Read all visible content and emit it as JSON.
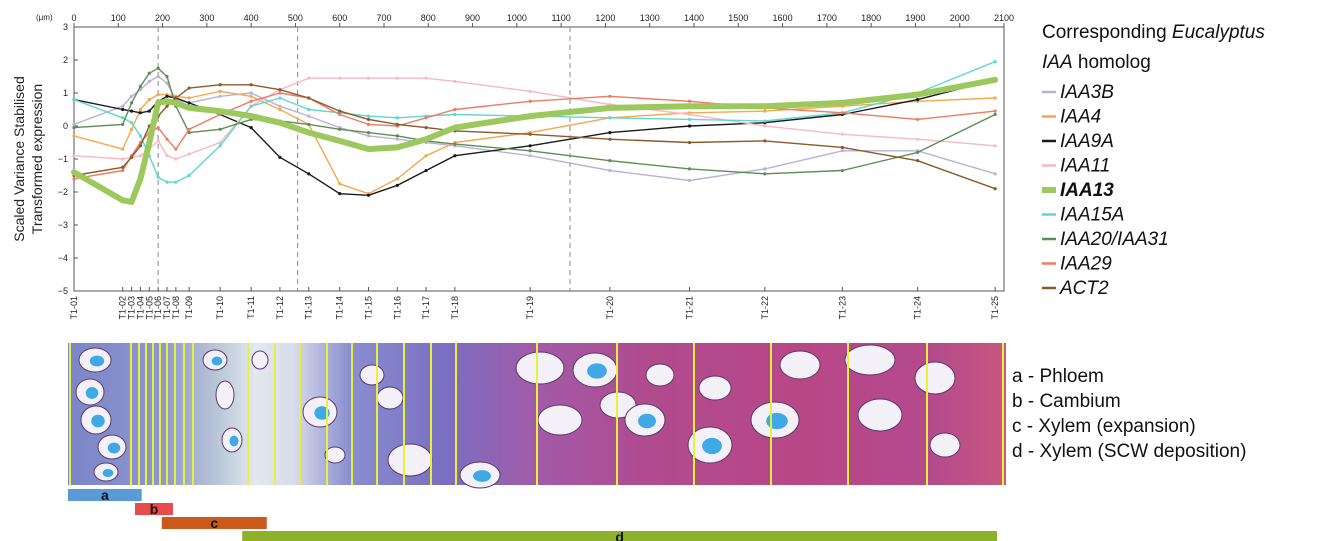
{
  "chart_data": {
    "type": "line",
    "top_axis_label": "(μm)",
    "top_axis_ticks": [
      "0",
      "100",
      "200",
      "300",
      "400",
      "500",
      "600",
      "700",
      "800",
      "900",
      "1000",
      "1100",
      "1200",
      "1300",
      "1400",
      "1500",
      "1600",
      "1700",
      "1800",
      "1900",
      "2000",
      "2100"
    ],
    "top_axis_range": [
      0,
      2100
    ],
    "ylabel_line1": "Scaled Variance Stabilised",
    "ylabel_line2": "Transformed expression",
    "ylim": [
      -5,
      3
    ],
    "yticks": [
      "3",
      "2",
      "1",
      "0",
      "−1",
      "−2",
      "−3",
      "−4",
      "−5"
    ],
    "grid": false,
    "legend_title_prefix": "Corresponding ",
    "legend_title_genus": "Eucalyptus",
    "legend_title_gene": "IAA",
    "legend_title_suffix": " homolog",
    "legend_placement": "right",
    "x": [
      {
        "label": "T1-01",
        "um": 0
      },
      {
        "label": "T1-02",
        "um": 110
      },
      {
        "label": "T1-03",
        "um": 130
      },
      {
        "label": "T1-04",
        "um": 150
      },
      {
        "label": "T1-05",
        "um": 170
      },
      {
        "label": "T1-06",
        "um": 190
      },
      {
        "label": "T1-07",
        "um": 210
      },
      {
        "label": "T1-08",
        "um": 230
      },
      {
        "label": "T1-09",
        "um": 260
      },
      {
        "label": "T1-10",
        "um": 330
      },
      {
        "label": "T1-11",
        "um": 400
      },
      {
        "label": "T1-12",
        "um": 465
      },
      {
        "label": "T1-13",
        "um": 530
      },
      {
        "label": "T1-14",
        "um": 600
      },
      {
        "label": "T1-15",
        "um": 665
      },
      {
        "label": "T1-16",
        "um": 730
      },
      {
        "label": "T1-17",
        "um": 795
      },
      {
        "label": "T1-18",
        "um": 860
      },
      {
        "label": "T1-19",
        "um": 1030
      },
      {
        "label": "T1-20",
        "um": 1210
      },
      {
        "label": "T1-21",
        "um": 1390
      },
      {
        "label": "T1-22",
        "um": 1560
      },
      {
        "label": "T1-23",
        "um": 1735
      },
      {
        "label": "T1-24",
        "um": 1905
      },
      {
        "label": "T1-25",
        "um": 2080
      }
    ],
    "dividers_um": [
      190,
      505,
      1120
    ],
    "series": [
      {
        "name": "IAA3B",
        "color": "#b8b2d8",
        "bold": false,
        "values": [
          0.05,
          0.6,
          0.9,
          1.1,
          1.35,
          1.5,
          1.3,
          0.8,
          0.7,
          0.9,
          1.0,
          0.6,
          0.3,
          -0.05,
          -0.3,
          -0.4,
          -0.5,
          -0.6,
          -0.9,
          -1.35,
          -1.65,
          -1.3,
          -0.75,
          -0.75,
          -1.45
        ]
      },
      {
        "name": "IAA4",
        "color": "#f2a84e",
        "bold": false,
        "values": [
          -0.3,
          -0.7,
          -0.1,
          0.5,
          0.8,
          0.95,
          0.95,
          0.9,
          0.85,
          1.05,
          0.9,
          0.5,
          0.05,
          -1.75,
          -2.05,
          -1.6,
          -0.9,
          -0.5,
          -0.2,
          0.25,
          0.4,
          0.45,
          0.6,
          0.75,
          0.85
        ]
      },
      {
        "name": "IAA9A",
        "color": "#1a1a1a",
        "bold": false,
        "values": [
          0.8,
          0.5,
          0.45,
          0.4,
          0.45,
          0.75,
          0.9,
          0.85,
          0.7,
          0.35,
          -0.05,
          -0.95,
          -1.45,
          -2.05,
          -2.1,
          -1.8,
          -1.35,
          -0.9,
          -0.6,
          -0.2,
          0.0,
          0.1,
          0.35,
          0.8,
          1.4
        ]
      },
      {
        "name": "IAA11",
        "color": "#f6b9c7",
        "bold": false,
        "values": [
          -0.9,
          -1.0,
          -0.95,
          -0.9,
          -0.7,
          -0.45,
          -0.9,
          -1.0,
          -0.85,
          -0.5,
          0.6,
          1.1,
          1.45,
          1.45,
          1.45,
          1.45,
          1.45,
          1.35,
          1.05,
          0.65,
          0.35,
          0.0,
          -0.25,
          -0.4,
          -0.6
        ]
      },
      {
        "name": "IAA13",
        "color": "#9dc85e",
        "bold": true,
        "values": [
          -1.4,
          -2.25,
          -2.3,
          -1.6,
          -0.5,
          0.7,
          0.75,
          0.7,
          0.55,
          0.45,
          0.3,
          0.1,
          -0.2,
          -0.45,
          -0.7,
          -0.65,
          -0.4,
          -0.05,
          0.3,
          0.55,
          0.6,
          0.6,
          0.7,
          0.95,
          1.4
        ]
      },
      {
        "name": "IAA15A",
        "color": "#5fd6d0",
        "bold": false,
        "values": [
          0.8,
          0.25,
          0.1,
          -0.3,
          -0.9,
          -1.55,
          -1.7,
          -1.7,
          -1.5,
          -0.6,
          0.6,
          0.85,
          0.5,
          0.4,
          0.3,
          0.25,
          0.3,
          0.35,
          0.3,
          0.25,
          0.2,
          0.15,
          0.4,
          1.0,
          1.95
        ]
      },
      {
        "name": "IAA20/IAA31",
        "color": "#5c8e52",
        "bold": false,
        "values": [
          -0.05,
          0.05,
          0.7,
          1.2,
          1.6,
          1.75,
          1.5,
          0.6,
          -0.2,
          -0.1,
          0.2,
          0.15,
          0.05,
          -0.1,
          -0.2,
          -0.3,
          -0.45,
          -0.55,
          -0.75,
          -1.05,
          -1.3,
          -1.45,
          -1.35,
          -0.8,
          0.35
        ]
      },
      {
        "name": "IAA29",
        "color": "#ee7a64",
        "bold": false,
        "values": [
          -1.6,
          -1.35,
          -0.9,
          -0.5,
          -0.2,
          -0.05,
          -0.4,
          -0.7,
          -0.1,
          0.35,
          0.75,
          1.0,
          0.85,
          0.35,
          0.05,
          0.0,
          0.25,
          0.5,
          0.75,
          0.9,
          0.75,
          0.55,
          0.4,
          0.2,
          0.45
        ]
      },
      {
        "name": "ACT2",
        "color": "#8b5a2b",
        "bold": false,
        "values": [
          -1.5,
          -1.25,
          -0.95,
          -0.6,
          0.0,
          0.3,
          0.6,
          0.85,
          1.15,
          1.25,
          1.25,
          1.1,
          0.85,
          0.45,
          0.2,
          0.05,
          -0.05,
          -0.15,
          -0.25,
          -0.4,
          -0.5,
          -0.45,
          -0.65,
          -1.05,
          -1.9
        ]
      }
    ]
  },
  "bands": [
    {
      "letter": "a",
      "color": "#5b9bd5",
      "start_um": 0,
      "end_um": 165
    },
    {
      "letter": "b",
      "color": "#e84b4b",
      "start_um": 150,
      "end_um": 235
    },
    {
      "letter": "c",
      "color": "#c95a1a",
      "start_um": 210,
      "end_um": 445
    },
    {
      "letter": "d",
      "color": "#8fb12a",
      "start_um": 390,
      "end_um": 2080
    }
  ],
  "tissue_legend": [
    "a - Phloem",
    "b - Cambium",
    "c - Xylem (expansion)",
    "d - Xylem (SCW deposition)"
  ]
}
